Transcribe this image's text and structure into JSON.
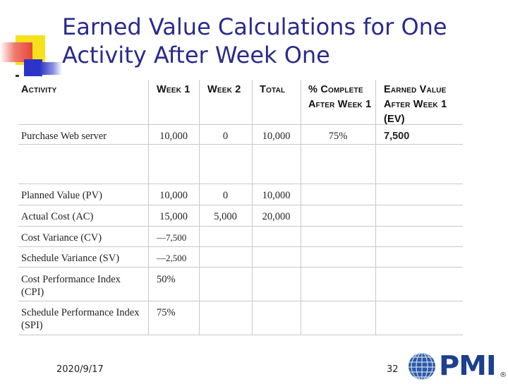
{
  "title": "Earned Value Calculations for One Activity After Week One",
  "table": {
    "headers": [
      "Activity",
      "Week 1",
      "Week 2",
      "Total",
      "% Complete After Week 1",
      "Earned Value After Week 1 (EV)"
    ],
    "activity_row": [
      "Purchase Web server",
      "10,000",
      "0",
      "10,000",
      "75%",
      "7,500"
    ],
    "rows": [
      [
        "Planned Value (PV)",
        "10,000",
        "0",
        "10,000"
      ],
      [
        "Actual Cost (AC)",
        "15,000",
        "5,000",
        "20,000"
      ],
      [
        "Cost Variance (CV)",
        "—7,500",
        "",
        ""
      ],
      [
        "Schedule Variance (SV)",
        "—2,500",
        "",
        ""
      ],
      [
        "Cost Performance Index (CPI)",
        "50%",
        "",
        ""
      ],
      [
        "Schedule Performance Index (SPI)",
        "75%",
        "",
        ""
      ]
    ]
  },
  "footer": {
    "date": "2020/9/17",
    "page": "32"
  },
  "logo": {
    "text": "PMI",
    "mark": "®"
  },
  "colors": {
    "title": "#2a2a8c",
    "deco_yellow": "#f5e21c",
    "deco_red": "#e8463a",
    "deco_blue": "#2a34c8",
    "logo_blue": "#1d3f8f"
  }
}
